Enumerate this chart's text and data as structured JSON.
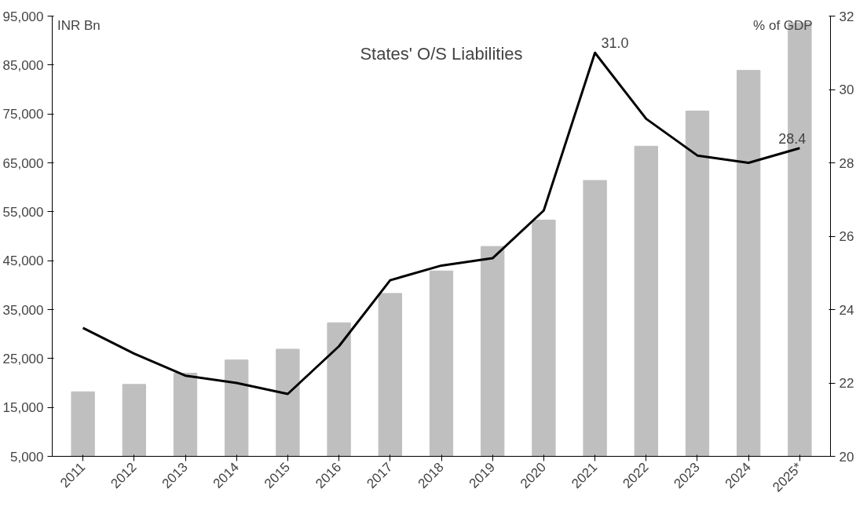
{
  "chart_data": {
    "type": "bar",
    "title": "States' O/S Liabilities",
    "ylabel": "INR Bn",
    "y2label": "% of GDP",
    "categories": [
      "2011",
      "2012",
      "2013",
      "2014",
      "2015",
      "2016",
      "2017",
      "2018",
      "2019",
      "2020",
      "2021",
      "2022",
      "2023",
      "2024",
      "2025*"
    ],
    "series": [
      {
        "color": "#bfbfbf",
        "values": [
          18200,
          19700,
          22000,
          24700,
          26900,
          32300,
          38300,
          42900,
          47900,
          53300,
          61400,
          68400,
          75600,
          83900,
          93600
        ]
      },
      {
        "type": "line",
        "axis": "y2",
        "color": "#000000",
        "values": [
          23.5,
          22.8,
          22.2,
          22.0,
          21.7,
          23.0,
          24.8,
          25.2,
          25.4,
          26.7,
          31.0,
          29.2,
          28.2,
          28.0,
          28.4
        ],
        "value_labels": [
          null,
          null,
          null,
          null,
          null,
          null,
          null,
          null,
          null,
          null,
          "31.0",
          null,
          null,
          null,
          "28.4"
        ]
      }
    ],
    "ylim": [
      5000,
      95000
    ],
    "yticks": [
      {
        "value": 5000,
        "label": "5,000"
      },
      {
        "value": 15000,
        "label": "15,000"
      },
      {
        "value": 25000,
        "label": "25,000"
      },
      {
        "value": 35000,
        "label": "35,000"
      },
      {
        "value": 45000,
        "label": "45,000"
      },
      {
        "value": 55000,
        "label": "55,000"
      },
      {
        "value": 65000,
        "label": "65,000"
      },
      {
        "value": 75000,
        "label": "75,000"
      },
      {
        "value": 85000,
        "label": "85,000"
      },
      {
        "value": 95000,
        "label": "95,000"
      }
    ],
    "y2lim": [
      20,
      32
    ],
    "y2ticks": [
      20,
      22,
      24,
      26,
      28,
      30,
      32
    ],
    "grid": false
  }
}
